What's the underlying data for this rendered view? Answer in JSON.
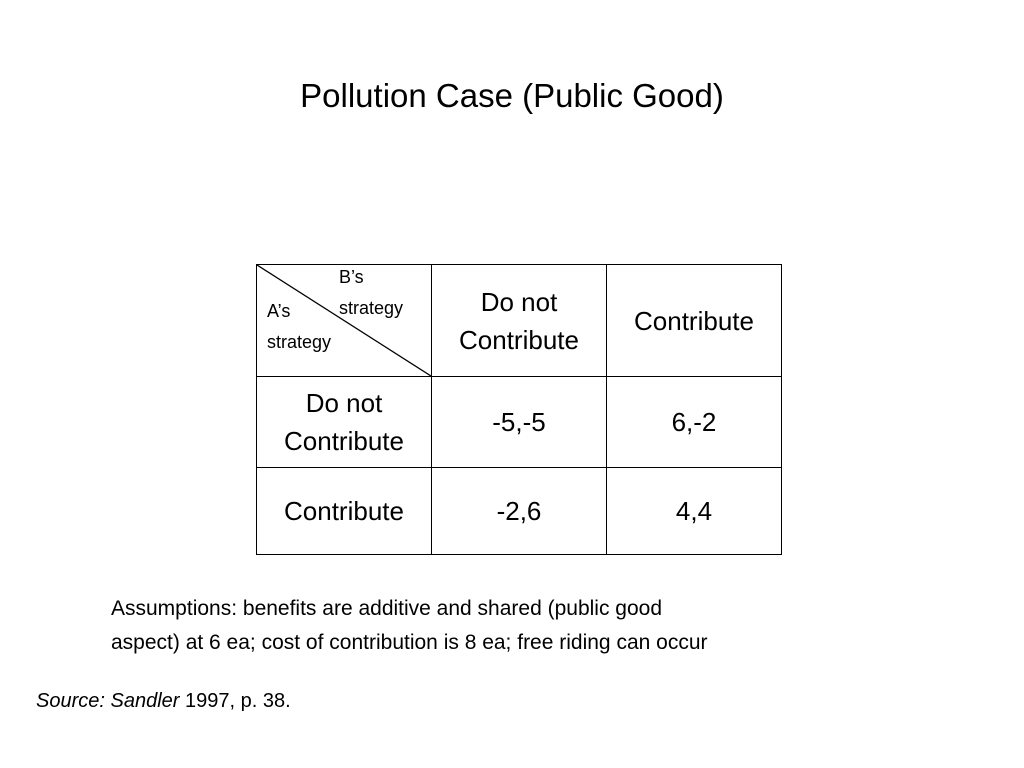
{
  "title": "Pollution Case (Public Good)",
  "matrix": {
    "corner": {
      "col_label_line1": "B’s",
      "col_label_line2": "strategy",
      "row_label_line1": "A’s",
      "row_label_line2": "strategy"
    },
    "columns": [
      [
        "Do not",
        "Contribute"
      ],
      [
        "Contribute"
      ]
    ],
    "rows": [
      {
        "label": [
          "Do not",
          "Contribute"
        ],
        "cells": [
          "-5,-5",
          "6,-2"
        ]
      },
      {
        "label": [
          "Contribute"
        ],
        "cells": [
          "-2,6",
          "4,4"
        ]
      }
    ]
  },
  "assumptions": {
    "line1": "Assumptions: benefits are additive and shared (public good",
    "line2": "aspect) at 6 ea; cost of contribution is 8 ea; free riding can occur"
  },
  "source": {
    "prefix": "Source: Sandler",
    "rest": " 1997, p. 38."
  }
}
